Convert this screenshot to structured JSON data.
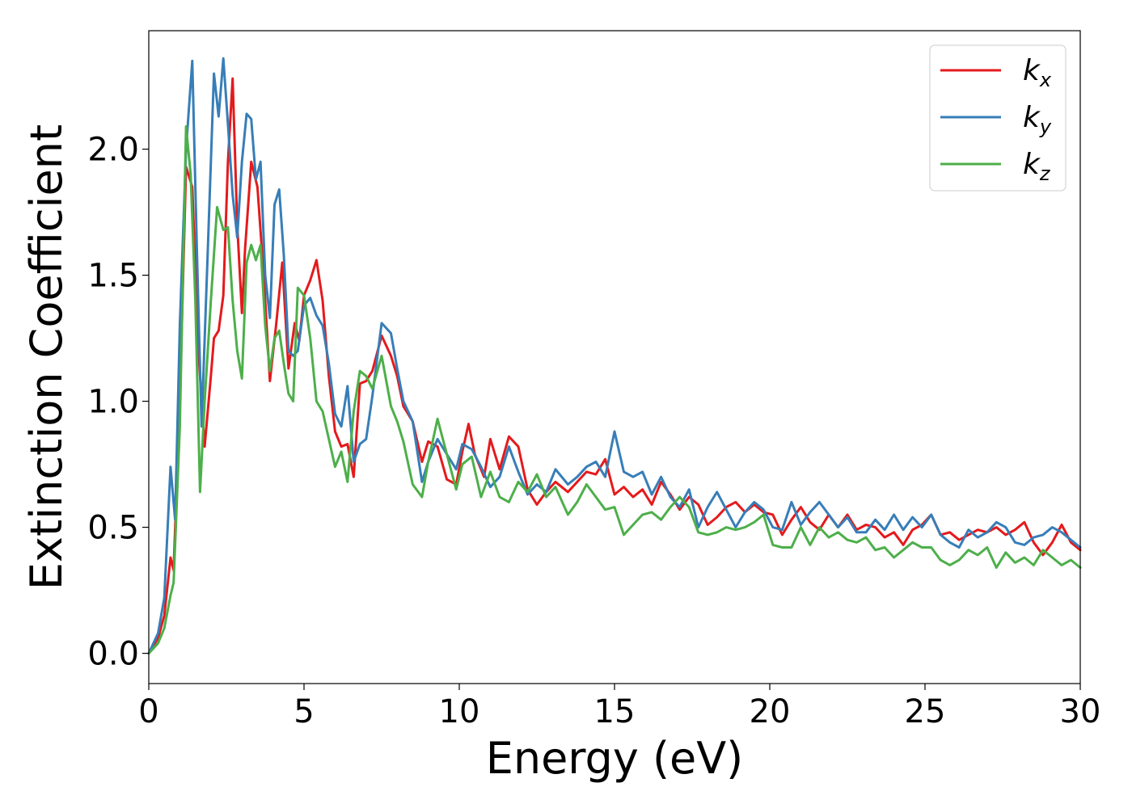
{
  "chart_data": {
    "type": "line",
    "xlabel": "Energy (eV)",
    "ylabel": "Extinction Coefficient",
    "xlim": [
      0,
      30
    ],
    "ylim": [
      -0.12,
      2.47
    ],
    "xticks": [
      0,
      5,
      10,
      15,
      20,
      25,
      30
    ],
    "xtick_labels": [
      "0",
      "5",
      "10",
      "15",
      "20",
      "25",
      "30"
    ],
    "yticks": [
      0.0,
      0.5,
      1.0,
      1.5,
      2.0
    ],
    "ytick_labels": [
      "0.0",
      "0.5",
      "1.0",
      "1.5",
      "2.0"
    ],
    "grid": false,
    "legend_position": "top-right",
    "series": [
      {
        "name": "k",
        "subscript": "x",
        "color": "#e41a1c",
        "x": [
          0,
          0.3,
          0.5,
          0.7,
          0.8,
          1.0,
          1.2,
          1.4,
          1.6,
          1.8,
          2.0,
          2.1,
          2.25,
          2.4,
          2.55,
          2.7,
          2.85,
          3.0,
          3.1,
          3.3,
          3.5,
          3.7,
          3.9,
          4.1,
          4.3,
          4.5,
          4.7,
          4.85,
          5.0,
          5.2,
          5.4,
          5.6,
          5.8,
          6.0,
          6.2,
          6.4,
          6.6,
          6.8,
          7.0,
          7.2,
          7.5,
          7.8,
          8.0,
          8.2,
          8.5,
          8.8,
          9.0,
          9.3,
          9.6,
          9.9,
          10.1,
          10.3,
          10.5,
          10.8,
          11.0,
          11.3,
          11.6,
          11.9,
          12.2,
          12.5,
          12.8,
          13.1,
          13.5,
          13.8,
          14.1,
          14.4,
          14.7,
          15.0,
          15.3,
          15.6,
          15.9,
          16.2,
          16.5,
          16.8,
          17.1,
          17.4,
          17.7,
          18.0,
          18.3,
          18.6,
          18.9,
          19.2,
          19.5,
          19.8,
          20.1,
          20.4,
          20.7,
          21.0,
          21.3,
          21.6,
          21.9,
          22.2,
          22.5,
          22.8,
          23.1,
          23.4,
          23.7,
          24.0,
          24.3,
          24.6,
          24.9,
          25.2,
          25.5,
          25.8,
          26.1,
          26.4,
          26.7,
          27.0,
          27.3,
          27.6,
          27.9,
          28.2,
          28.5,
          28.8,
          29.1,
          29.4,
          29.7,
          30.0
        ],
        "y": [
          0.0,
          0.06,
          0.15,
          0.38,
          0.33,
          1.0,
          1.93,
          1.85,
          1.2,
          0.82,
          1.1,
          1.25,
          1.28,
          1.42,
          1.95,
          2.28,
          1.7,
          1.35,
          1.6,
          1.95,
          1.85,
          1.5,
          1.08,
          1.3,
          1.55,
          1.13,
          1.31,
          1.24,
          1.42,
          1.48,
          1.56,
          1.4,
          1.1,
          0.88,
          0.82,
          0.83,
          0.7,
          1.07,
          1.08,
          1.12,
          1.26,
          1.18,
          1.1,
          0.98,
          0.92,
          0.76,
          0.84,
          0.82,
          0.69,
          0.67,
          0.8,
          0.91,
          0.79,
          0.7,
          0.85,
          0.73,
          0.86,
          0.82,
          0.65,
          0.59,
          0.64,
          0.68,
          0.64,
          0.68,
          0.72,
          0.71,
          0.77,
          0.63,
          0.66,
          0.62,
          0.65,
          0.59,
          0.68,
          0.63,
          0.57,
          0.62,
          0.59,
          0.51,
          0.54,
          0.58,
          0.6,
          0.56,
          0.59,
          0.56,
          0.55,
          0.47,
          0.53,
          0.58,
          0.52,
          0.49,
          0.55,
          0.5,
          0.55,
          0.49,
          0.51,
          0.5,
          0.46,
          0.48,
          0.43,
          0.49,
          0.51,
          0.55,
          0.47,
          0.48,
          0.45,
          0.47,
          0.49,
          0.48,
          0.5,
          0.47,
          0.49,
          0.52,
          0.44,
          0.39,
          0.44,
          0.51,
          0.44,
          0.41
        ]
      },
      {
        "name": "k",
        "subscript": "y",
        "color": "#377eb8",
        "x": [
          0,
          0.3,
          0.5,
          0.7,
          0.85,
          1.0,
          1.2,
          1.4,
          1.55,
          1.7,
          1.9,
          2.1,
          2.25,
          2.4,
          2.55,
          2.7,
          2.85,
          3.0,
          3.15,
          3.3,
          3.45,
          3.6,
          3.75,
          3.9,
          4.05,
          4.2,
          4.35,
          4.5,
          4.65,
          4.8,
          5.0,
          5.2,
          5.4,
          5.6,
          5.8,
          6.0,
          6.2,
          6.4,
          6.6,
          6.8,
          7.0,
          7.2,
          7.5,
          7.8,
          8.0,
          8.2,
          8.5,
          8.8,
          9.0,
          9.3,
          9.6,
          9.9,
          10.1,
          10.4,
          10.7,
          11.0,
          11.3,
          11.6,
          11.9,
          12.2,
          12.5,
          12.8,
          13.1,
          13.5,
          13.8,
          14.1,
          14.4,
          14.7,
          15.0,
          15.3,
          15.6,
          15.9,
          16.2,
          16.5,
          16.8,
          17.1,
          17.4,
          17.7,
          18.0,
          18.3,
          18.6,
          18.9,
          19.2,
          19.5,
          19.8,
          20.1,
          20.4,
          20.7,
          21.0,
          21.3,
          21.6,
          21.9,
          22.2,
          22.5,
          22.8,
          23.1,
          23.4,
          23.7,
          24.0,
          24.3,
          24.6,
          24.9,
          25.2,
          25.5,
          25.8,
          26.1,
          26.4,
          26.7,
          27.0,
          27.3,
          27.6,
          27.9,
          28.2,
          28.5,
          28.8,
          29.1,
          29.4,
          29.7,
          30.0
        ],
        "y": [
          0.0,
          0.08,
          0.22,
          0.74,
          0.53,
          1.3,
          2.0,
          2.35,
          1.6,
          0.9,
          1.6,
          2.3,
          2.13,
          2.36,
          2.1,
          1.82,
          1.65,
          1.95,
          2.14,
          2.12,
          1.88,
          1.95,
          1.5,
          1.33,
          1.78,
          1.84,
          1.58,
          1.2,
          1.18,
          1.2,
          1.38,
          1.41,
          1.34,
          1.3,
          1.15,
          0.95,
          0.9,
          1.06,
          0.76,
          0.83,
          0.85,
          1.02,
          1.31,
          1.27,
          1.13,
          1.0,
          0.92,
          0.68,
          0.76,
          0.85,
          0.79,
          0.73,
          0.83,
          0.81,
          0.74,
          0.66,
          0.7,
          0.82,
          0.72,
          0.63,
          0.67,
          0.64,
          0.73,
          0.67,
          0.7,
          0.74,
          0.76,
          0.7,
          0.88,
          0.72,
          0.7,
          0.72,
          0.63,
          0.7,
          0.62,
          0.58,
          0.65,
          0.5,
          0.58,
          0.64,
          0.57,
          0.5,
          0.56,
          0.6,
          0.57,
          0.5,
          0.49,
          0.6,
          0.51,
          0.56,
          0.6,
          0.55,
          0.5,
          0.54,
          0.48,
          0.48,
          0.53,
          0.49,
          0.55,
          0.49,
          0.54,
          0.5,
          0.55,
          0.47,
          0.44,
          0.42,
          0.49,
          0.46,
          0.48,
          0.52,
          0.5,
          0.44,
          0.43,
          0.46,
          0.47,
          0.5,
          0.48,
          0.45,
          0.42
        ]
      },
      {
        "name": "k",
        "subscript": "z",
        "color": "#4daf4a",
        "x": [
          0,
          0.3,
          0.5,
          0.7,
          0.8,
          1.0,
          1.2,
          1.35,
          1.5,
          1.65,
          1.8,
          2.0,
          2.2,
          2.4,
          2.55,
          2.7,
          2.85,
          3.0,
          3.15,
          3.3,
          3.45,
          3.6,
          3.75,
          3.9,
          4.05,
          4.2,
          4.35,
          4.5,
          4.65,
          4.8,
          5.0,
          5.2,
          5.4,
          5.6,
          5.8,
          6.0,
          6.2,
          6.4,
          6.6,
          6.8,
          7.0,
          7.2,
          7.5,
          7.8,
          8.0,
          8.2,
          8.5,
          8.8,
          9.0,
          9.3,
          9.6,
          9.9,
          10.1,
          10.4,
          10.7,
          11.0,
          11.3,
          11.6,
          11.9,
          12.2,
          12.5,
          12.8,
          13.1,
          13.5,
          13.8,
          14.1,
          14.4,
          14.7,
          15.0,
          15.3,
          15.6,
          15.9,
          16.2,
          16.5,
          16.8,
          17.1,
          17.4,
          17.7,
          18.0,
          18.3,
          18.6,
          18.9,
          19.2,
          19.5,
          19.8,
          20.1,
          20.4,
          20.7,
          21.0,
          21.3,
          21.6,
          21.9,
          22.2,
          22.5,
          22.8,
          23.1,
          23.4,
          23.7,
          24.0,
          24.3,
          24.6,
          24.9,
          25.2,
          25.5,
          25.8,
          26.1,
          26.4,
          26.7,
          27.0,
          27.3,
          27.6,
          27.9,
          28.2,
          28.5,
          28.8,
          29.1,
          29.4,
          29.7,
          30.0
        ],
        "y": [
          0.0,
          0.04,
          0.1,
          0.23,
          0.28,
          0.9,
          2.09,
          1.9,
          1.4,
          0.64,
          1.0,
          1.4,
          1.77,
          1.68,
          1.69,
          1.4,
          1.2,
          1.09,
          1.55,
          1.62,
          1.56,
          1.62,
          1.3,
          1.12,
          1.25,
          1.28,
          1.15,
          1.03,
          1.0,
          1.45,
          1.42,
          1.25,
          1.0,
          0.96,
          0.85,
          0.74,
          0.8,
          0.68,
          0.96,
          1.12,
          1.1,
          1.05,
          1.18,
          0.98,
          0.92,
          0.84,
          0.67,
          0.62,
          0.76,
          0.93,
          0.79,
          0.65,
          0.75,
          0.78,
          0.62,
          0.72,
          0.62,
          0.6,
          0.68,
          0.64,
          0.71,
          0.62,
          0.66,
          0.55,
          0.6,
          0.67,
          0.62,
          0.57,
          0.58,
          0.47,
          0.51,
          0.55,
          0.56,
          0.53,
          0.58,
          0.62,
          0.58,
          0.48,
          0.47,
          0.48,
          0.5,
          0.49,
          0.5,
          0.52,
          0.55,
          0.43,
          0.42,
          0.42,
          0.5,
          0.43,
          0.5,
          0.46,
          0.48,
          0.45,
          0.44,
          0.46,
          0.41,
          0.42,
          0.38,
          0.41,
          0.44,
          0.42,
          0.42,
          0.37,
          0.35,
          0.37,
          0.41,
          0.39,
          0.42,
          0.34,
          0.4,
          0.36,
          0.38,
          0.35,
          0.41,
          0.38,
          0.35,
          0.37,
          0.34
        ]
      }
    ]
  }
}
